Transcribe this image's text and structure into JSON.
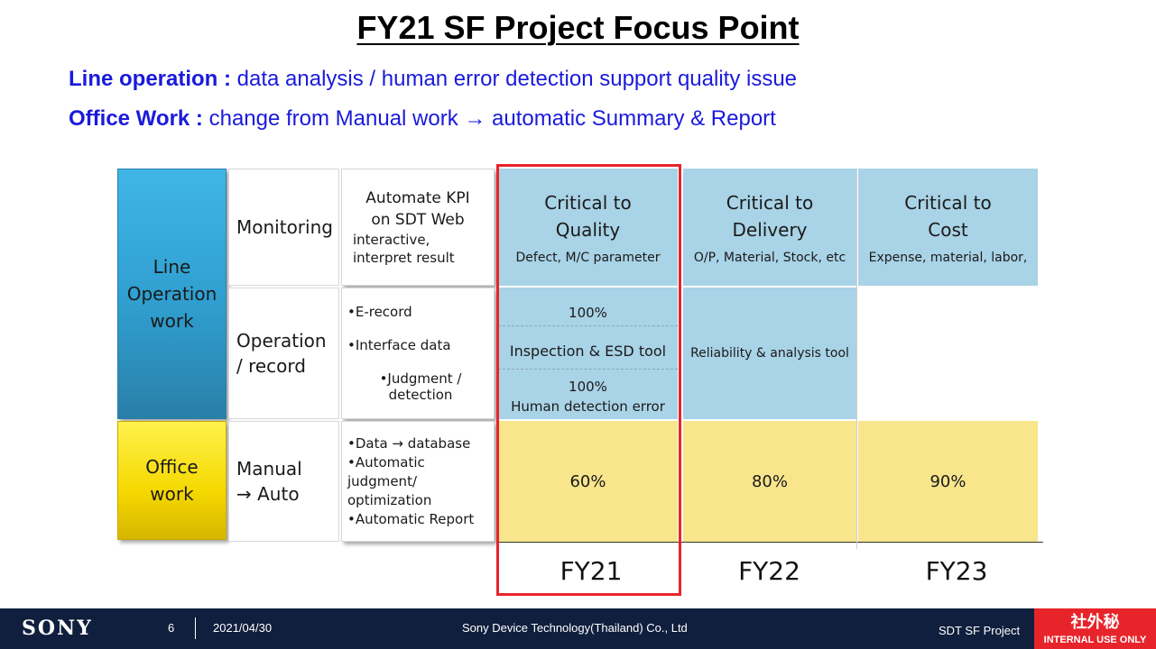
{
  "title": "FY21 SF Project Focus Point",
  "lines": [
    {
      "label": "Line operation :",
      "text": " data analysis / human error detection support quality issue"
    },
    {
      "label": "Office Work :",
      "text": " change from Manual work → automatic Summary & Report"
    }
  ],
  "table": {
    "categories": {
      "line_operation": "Line Operation work",
      "office": "Office work"
    },
    "subcategories": {
      "monitoring": "Monitoring",
      "operation": "Operation / record",
      "manual": "Manual → Auto"
    },
    "details": {
      "monitoring_title": "Automate KPI on SDT Web",
      "monitoring_sub": "interactive, interpret result",
      "op_items": [
        "•E-record",
        "•Interface data",
        "•Judgment / detection"
      ],
      "manual_items": [
        "•Data → database",
        "•Automatic judgment/ optimization",
        "•Automatic Report"
      ]
    },
    "fy21": {
      "head": "Critical to Quality",
      "sub": "Defect, M/C parameter",
      "op1": "100%",
      "op2": "Inspection & ESD tool",
      "op3a": "100%",
      "op3b": "Human detection error",
      "office": "60%"
    },
    "fy22": {
      "head": "Critical to Delivery",
      "sub": "O/P, Material, Stock, etc",
      "op": "Reliability & analysis tool",
      "office": "80%"
    },
    "fy23": {
      "head": "Critical to Cost",
      "sub": "Expense, material, labor,",
      "office": "90%"
    },
    "years": [
      "FY21",
      "FY22",
      "FY23"
    ]
  },
  "footer": {
    "logo": "SONY",
    "page": "6",
    "date": "2021/04/30",
    "company": "Sony Device Technology(Thailand) Co., Ltd",
    "project": "SDT SF Project",
    "badge_jp": "社外秘",
    "badge_en": "INTERNAL USE ONLY"
  },
  "colors": {
    "accent_blue": "#1a1adc",
    "light_blue": "#a9d3e6",
    "light_yellow": "#f8e58c",
    "highlight_red": "#e8242b",
    "footer_bg": "#0f1f3d"
  }
}
